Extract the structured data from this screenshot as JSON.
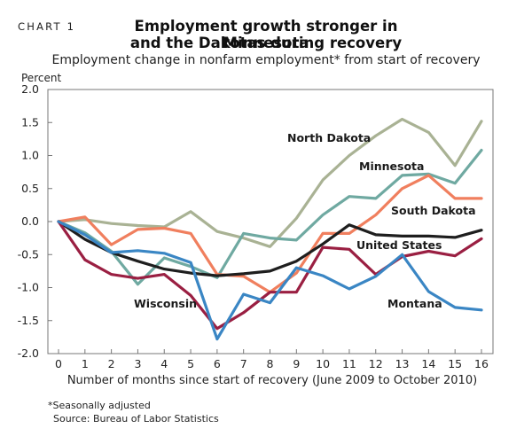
{
  "header": {
    "chart_label": "CHART 1",
    "title_line1": "Employment growth stronger in Minnesota",
    "title_line2": "and the Dakotas during recovery",
    "subtitle": "Employment change in nonfarm employment* from start of recovery"
  },
  "footer": {
    "note": "*Seasonally adjusted",
    "source": "Source: Bureau of Labor Statistics"
  },
  "chart_data": {
    "type": "line",
    "title": "Employment growth stronger in Minnesota and the Dakotas during recovery",
    "subtitle": "Employment change in nonfarm employment* from start of recovery",
    "ylabel": "Percent",
    "xlabel": "Number of months since start of recovery (June 2009 to October 2010)",
    "ylim": [
      -2.0,
      2.0
    ],
    "xlim": [
      0,
      16
    ],
    "yticks": [
      "2.0",
      "1.5",
      "1.0",
      "0.5",
      "0.0",
      "-0.5",
      "-1.0",
      "-1.5",
      "-2.0"
    ],
    "ytick_values": [
      2.0,
      1.5,
      1.0,
      0.5,
      0.0,
      -0.5,
      -1.0,
      -1.5,
      -2.0
    ],
    "xticks": [
      "0",
      "1",
      "2",
      "3",
      "4",
      "5",
      "6",
      "7",
      "8",
      "9",
      "10",
      "11",
      "12",
      "13",
      "14",
      "15",
      "16"
    ],
    "x": [
      0,
      1,
      2,
      3,
      4,
      5,
      6,
      7,
      8,
      9,
      10,
      11,
      12,
      13,
      14,
      15,
      16
    ],
    "grid": false,
    "legend": "inline labels",
    "series": [
      {
        "name": "North Dakota",
        "color": "#a9b294",
        "label": "North Dakota",
        "values": [
          0.0,
          0.03,
          -0.03,
          -0.06,
          -0.08,
          0.15,
          -0.15,
          -0.25,
          -0.38,
          0.05,
          0.63,
          1.0,
          1.3,
          1.55,
          1.35,
          0.85,
          1.52
        ]
      },
      {
        "name": "Minnesota",
        "color": "#6fa9a1",
        "label": "Minnesota",
        "values": [
          0.0,
          -0.17,
          -0.45,
          -0.95,
          -0.55,
          -0.68,
          -0.85,
          -0.18,
          -0.25,
          -0.28,
          0.1,
          0.38,
          0.35,
          0.7,
          0.72,
          0.58,
          1.08
        ]
      },
      {
        "name": "South Dakota",
        "color": "#f07f5e",
        "label": "South Dakota",
        "values": [
          0.0,
          0.07,
          -0.35,
          -0.12,
          -0.1,
          -0.18,
          -0.8,
          -0.83,
          -1.07,
          -0.78,
          -0.18,
          -0.18,
          0.1,
          0.5,
          0.7,
          0.35,
          0.35
        ]
      },
      {
        "name": "United States",
        "color": "#1e1e1e",
        "label": "United States",
        "values": [
          0.0,
          -0.27,
          -0.47,
          -0.6,
          -0.72,
          -0.78,
          -0.82,
          -0.79,
          -0.75,
          -0.6,
          -0.34,
          -0.05,
          -0.2,
          -0.22,
          -0.22,
          -0.24,
          -0.13
        ]
      },
      {
        "name": "Wisconsin",
        "color": "#9a1f42",
        "label": "Wisconsin",
        "values": [
          0.0,
          -0.58,
          -0.8,
          -0.86,
          -0.8,
          -1.12,
          -1.62,
          -1.38,
          -1.07,
          -1.07,
          -0.39,
          -0.42,
          -0.8,
          -0.53,
          -0.45,
          -0.52,
          -0.26
        ]
      },
      {
        "name": "Montana",
        "color": "#3a86c4",
        "label": "Montana",
        "values": [
          0.0,
          -0.2,
          -0.47,
          -0.44,
          -0.48,
          -0.62,
          -1.78,
          -1.1,
          -1.23,
          -0.7,
          -0.82,
          -1.02,
          -0.83,
          -0.5,
          -1.06,
          -1.3,
          -1.34
        ]
      }
    ]
  }
}
